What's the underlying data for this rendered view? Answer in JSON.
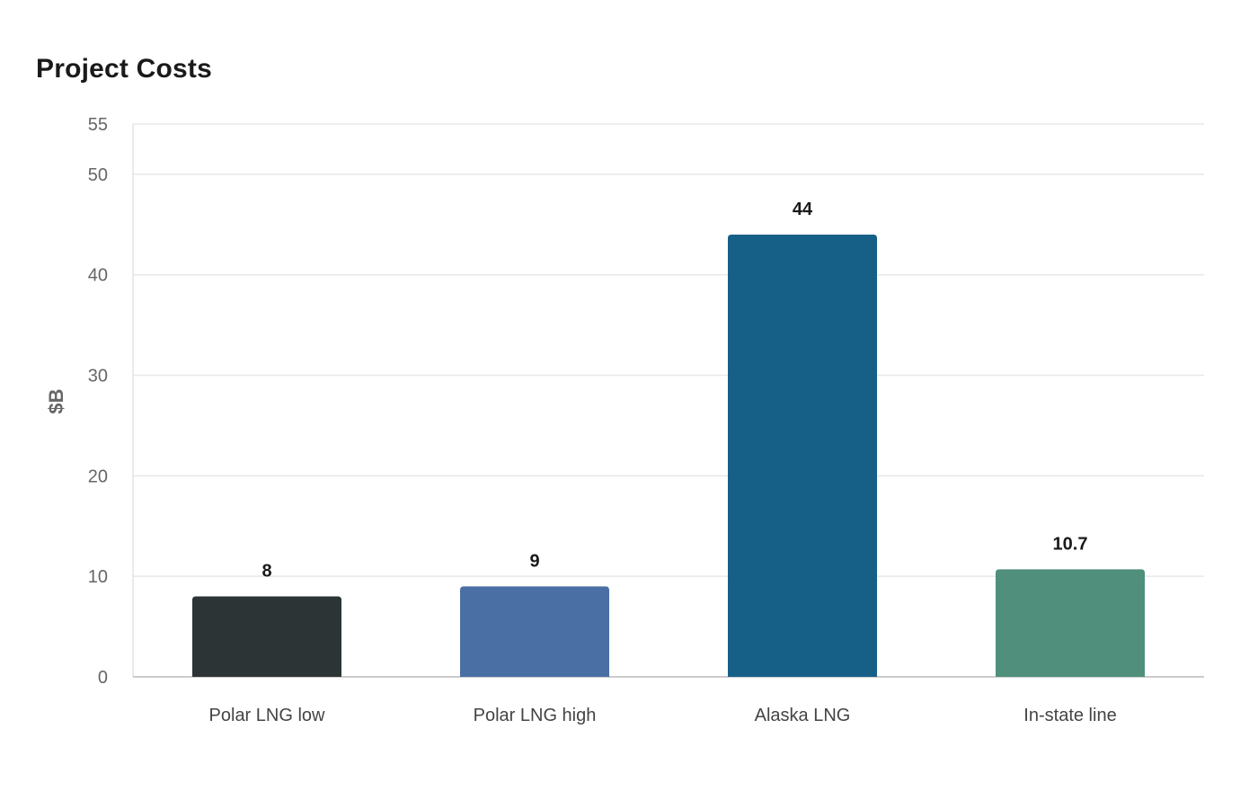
{
  "chart_data": {
    "type": "bar",
    "title": "Project Costs",
    "xlabel": "",
    "ylabel": "$B",
    "ylim": [
      0,
      55
    ],
    "yticks": [
      0,
      10,
      20,
      30,
      40,
      50,
      55
    ],
    "grid": true,
    "categories": [
      "Polar LNG low",
      "Polar LNG high",
      "Alaska LNG",
      "In-state line"
    ],
    "values": [
      8,
      9,
      44,
      10.7
    ],
    "value_labels": [
      "8",
      "9",
      "44",
      "10.7"
    ],
    "colors": [
      "#2d3436",
      "#4a6fa5",
      "#166088",
      "#4f8f7b"
    ]
  }
}
